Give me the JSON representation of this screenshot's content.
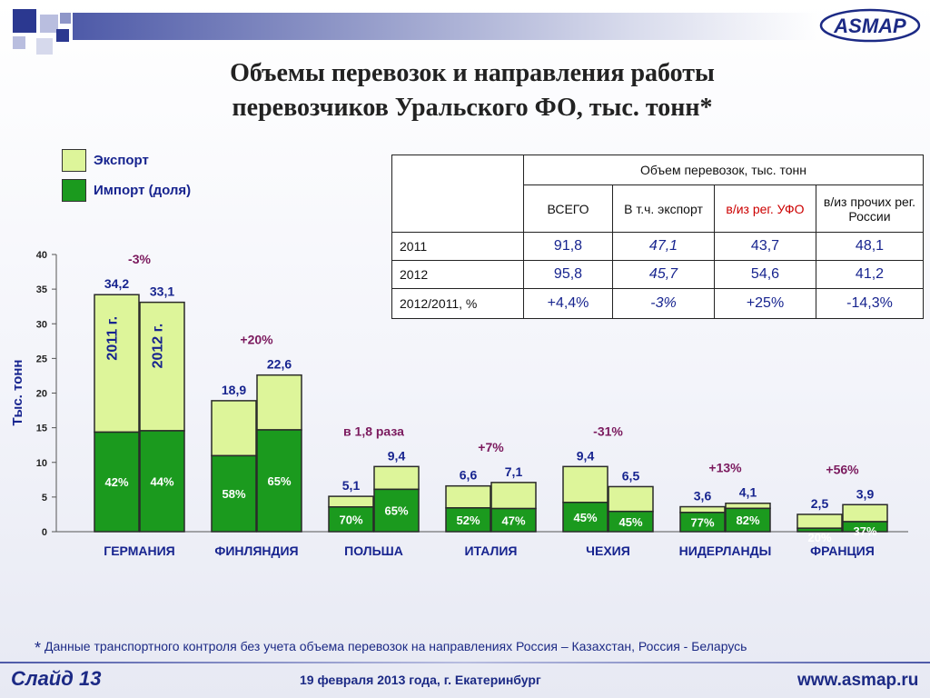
{
  "header": {
    "title_line1": "Объемы перевозок и направления работы",
    "title_line2": "перевозчиков Уральского ФО, тыс. тонн*",
    "logo_text": "ASMAP"
  },
  "legend": {
    "export_label": "Экспорт",
    "import_label": "Импорт (доля)"
  },
  "colors": {
    "export": "#ddf59a",
    "import": "#1b9a1e",
    "navy": "#17248f",
    "purple": "#7b1a5e"
  },
  "summary_table": {
    "group_header": "Объем перевозок, тыс. тонн",
    "col_total": "ВСЕГО",
    "col_export": "В т.ч. экспорт",
    "col_ufo": "в/из рег. УФО",
    "col_other": "в/из прочих рег. России",
    "rows": [
      {
        "label": "2011",
        "total": "91,8",
        "export": "47,1",
        "ufo": "43,7",
        "other": "48,1"
      },
      {
        "label": "2012",
        "total": "95,8",
        "export": "45,7",
        "ufo": "54,6",
        "other": "41,2"
      },
      {
        "label": "2012/2011, %",
        "total": "+4,4%",
        "export": "-3%",
        "ufo": "+25%",
        "other": "-14,3%"
      }
    ]
  },
  "chart_data": {
    "type": "bar",
    "stacked": true,
    "ylabel": "Тыс. тонн",
    "ylim": [
      0,
      40
    ],
    "yticks": [
      0,
      5,
      10,
      15,
      20,
      25,
      30,
      35,
      40
    ],
    "year_labels": [
      "2011 г.",
      "2012 г."
    ],
    "categories": [
      "ГЕРМАНИЯ",
      "ФИНЛЯНДИЯ",
      "ПОЛЬША",
      "ИТАЛИЯ",
      "ЧЕХИЯ",
      "НИДЕРЛАНДЫ",
      "ФРАНЦИЯ"
    ],
    "groups": [
      {
        "country": "ГЕРМАНИЯ",
        "change": "-3%",
        "bars": [
          {
            "year": "2011",
            "total": 34.2,
            "total_label": "34,2",
            "import_share": 42,
            "import_label": "42%"
          },
          {
            "year": "2012",
            "total": 33.1,
            "total_label": "33,1",
            "import_share": 44,
            "import_label": "44%"
          }
        ]
      },
      {
        "country": "ФИНЛЯНДИЯ",
        "change": "+20%",
        "bars": [
          {
            "year": "2011",
            "total": 18.9,
            "total_label": "18,9",
            "import_share": 58,
            "import_label": "58%"
          },
          {
            "year": "2012",
            "total": 22.6,
            "total_label": "22,6",
            "import_share": 65,
            "import_label": "65%"
          }
        ]
      },
      {
        "country": "ПОЛЬША",
        "change": "в 1,8 раза",
        "bars": [
          {
            "year": "2011",
            "total": 5.1,
            "total_label": "5,1",
            "import_share": 70,
            "import_label": "70%"
          },
          {
            "year": "2012",
            "total": 9.4,
            "total_label": "9,4",
            "import_share": 65,
            "import_label": "65%"
          }
        ]
      },
      {
        "country": "ИТАЛИЯ",
        "change": "+7%",
        "bars": [
          {
            "year": "2011",
            "total": 6.6,
            "total_label": "6,6",
            "import_share": 52,
            "import_label": "52%"
          },
          {
            "year": "2012",
            "total": 7.1,
            "total_label": "7,1",
            "import_share": 47,
            "import_label": "47%"
          }
        ]
      },
      {
        "country": "ЧЕХИЯ",
        "change": "-31%",
        "bars": [
          {
            "year": "2011",
            "total": 9.4,
            "total_label": "9,4",
            "import_share": 45,
            "import_label": "45%"
          },
          {
            "year": "2012",
            "total": 6.5,
            "total_label": "6,5",
            "import_share": 45,
            "import_label": "45%"
          }
        ]
      },
      {
        "country": "НИДЕРЛАНДЫ",
        "change": "+13%",
        "bars": [
          {
            "year": "2011",
            "total": 3.6,
            "total_label": "3,6",
            "import_share": 77,
            "import_label": "77%"
          },
          {
            "year": "2012",
            "total": 4.1,
            "total_label": "4,1",
            "import_share": 82,
            "import_label": "82%"
          }
        ]
      },
      {
        "country": "ФРАНЦИЯ",
        "change": "+56%",
        "bars": [
          {
            "year": "2011",
            "total": 2.5,
            "total_label": "2,5",
            "import_share": 20,
            "import_label": "20%"
          },
          {
            "year": "2012",
            "total": 3.9,
            "total_label": "3,9",
            "import_share": 37,
            "import_label": "37%"
          }
        ]
      }
    ]
  },
  "footer": {
    "footnote_star": "*",
    "footnote": "Данные транспортного контроля без учета объема перевозок на направлениях Россия – Казахстан, Россия - Беларусь",
    "slide": "Слайд 13",
    "date": "19 февраля 2013 года,   г. Екатеринбург",
    "site": "www.asmap.ru"
  }
}
